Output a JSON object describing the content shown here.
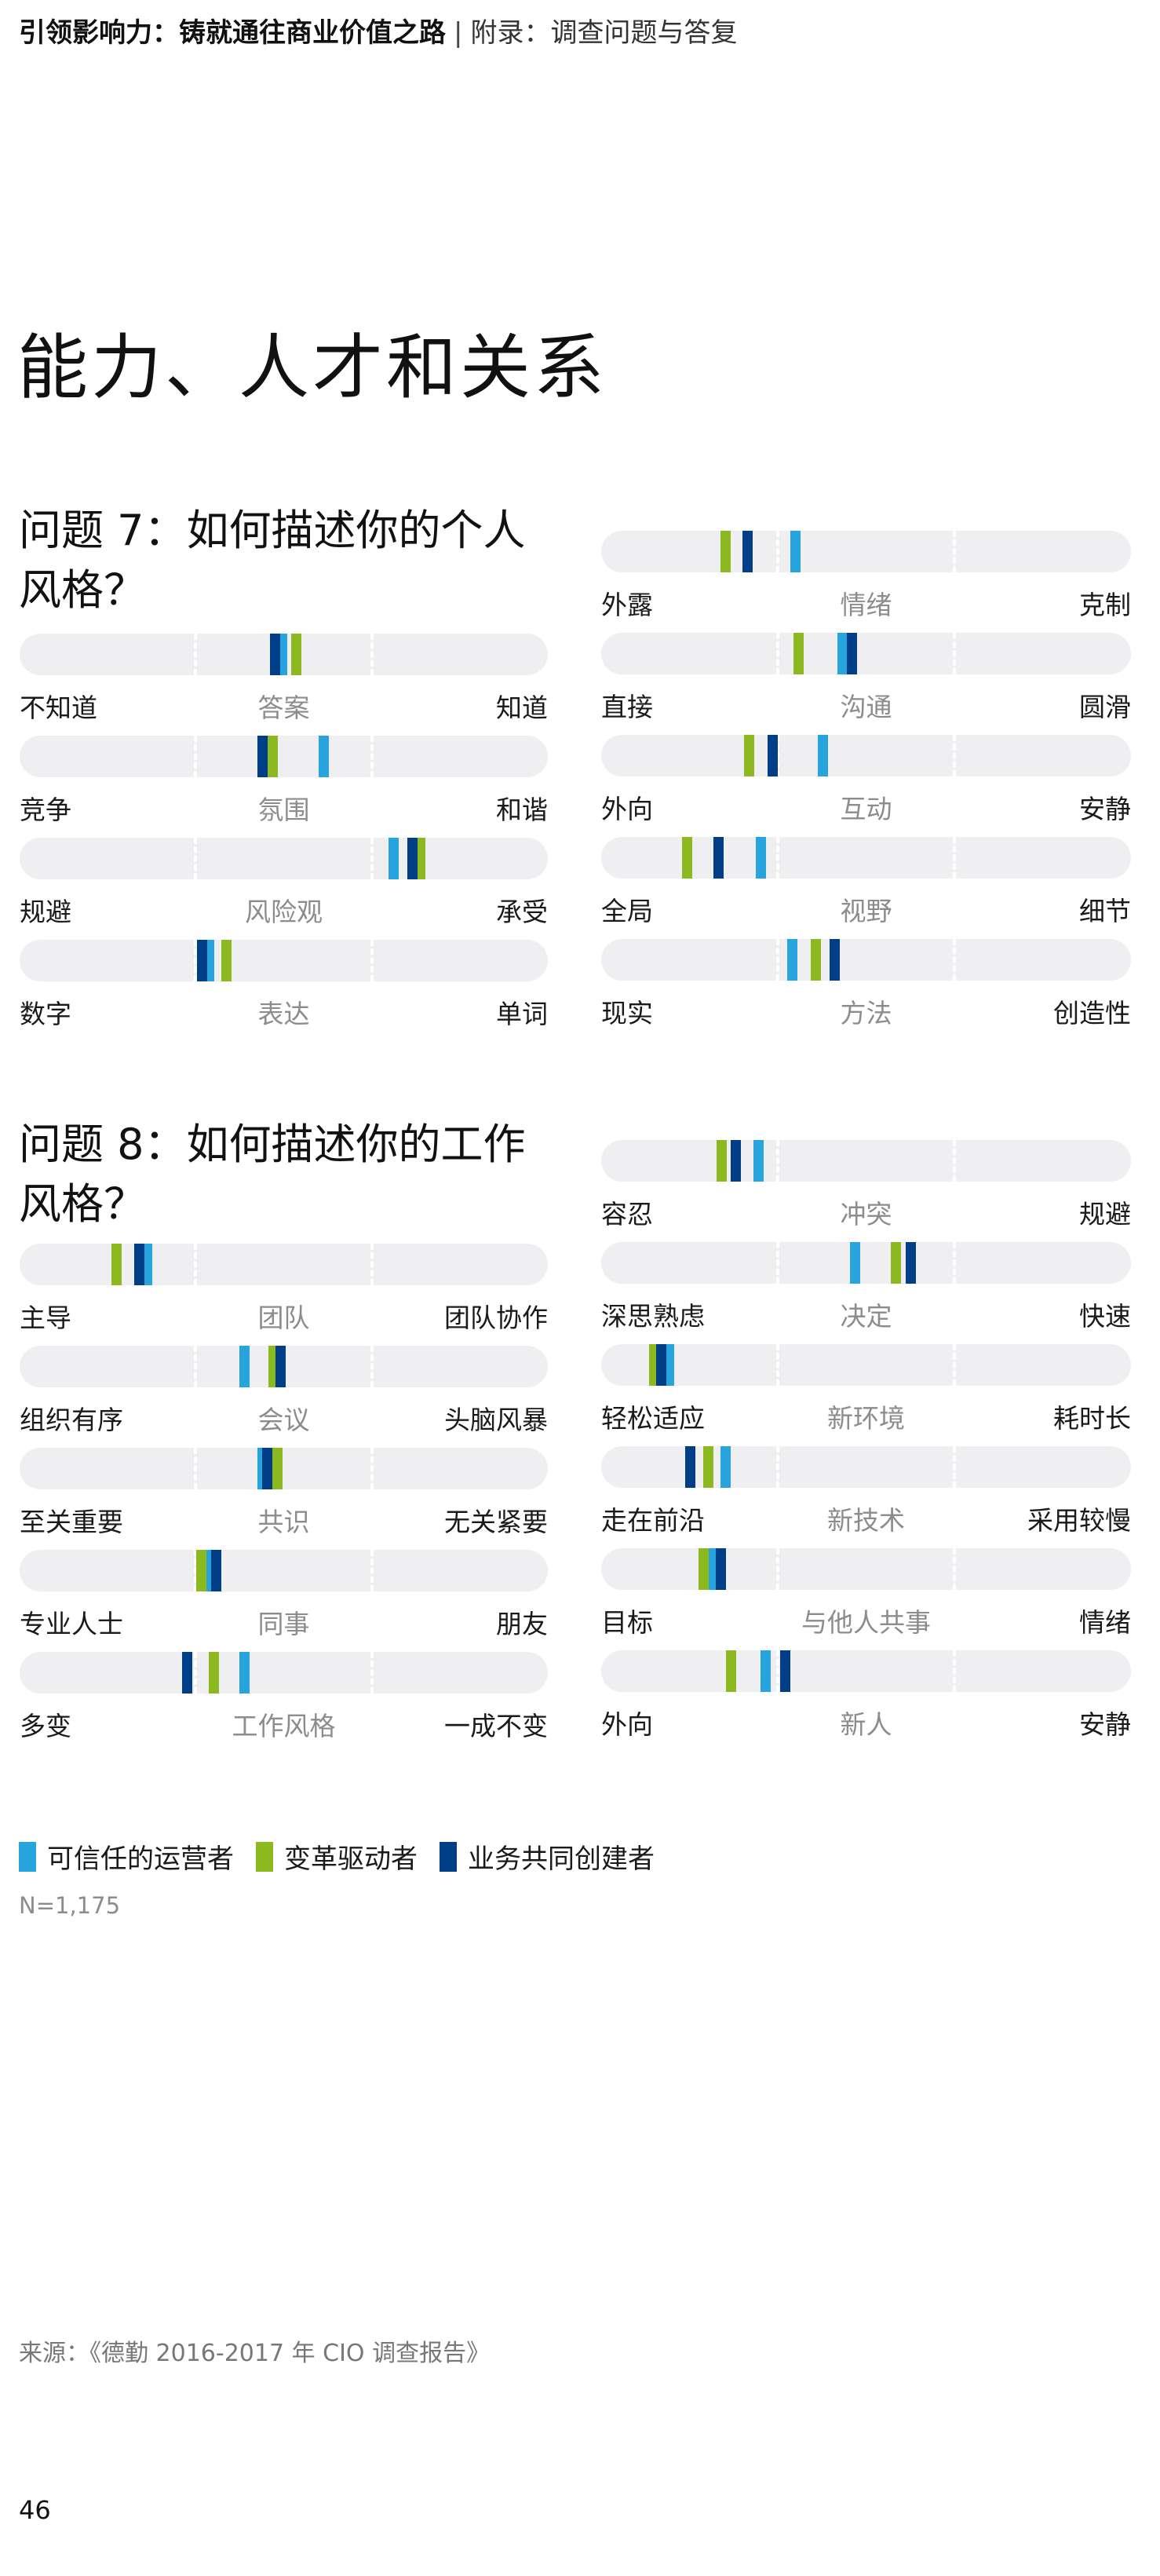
{
  "header": {
    "title": "引领影响力：铸就通往商业价值之路",
    "separator": "|",
    "subtitle": "附录：调查问题与答复"
  },
  "section_title": "能力、人才和关系",
  "legend": {
    "items": [
      {
        "label": "可信任的运营者",
        "color": "#27a3dd"
      },
      {
        "label": "变革驱动者",
        "color": "#8cb820"
      },
      {
        "label": "业务共同创建者",
        "color": "#003f87"
      }
    ]
  },
  "sample_size": "N=1,175",
  "source": "来源：《德勤 2016-2017 年 CIO 调查报告》",
  "page_number": "46",
  "chart_data": [
    {
      "type": "bar",
      "subtype": "semantic-differential-slider",
      "title": "问题 7：如何描述你的个人风格？",
      "scale": [
        0,
        100
      ],
      "grid": "dashed thirds",
      "series": [
        "可信任的运营者",
        "变革驱动者",
        "业务共同创建者"
      ],
      "colors": [
        "#27a3dd",
        "#8cb820",
        "#003f87"
      ],
      "items": [
        {
          "left": "不知道",
          "center": "答案",
          "right": "知道",
          "values": [
            49.6,
            52.3,
            48.3
          ]
        },
        {
          "left": "竞争",
          "center": "氛围",
          "right": "和谐",
          "values": [
            57.5,
            47.8,
            45.9
          ]
        },
        {
          "left": "规避",
          "center": "风险观",
          "right": "承受",
          "values": [
            70.7,
            75.8,
            74.3
          ]
        },
        {
          "left": "数字",
          "center": "表达",
          "right": "单词",
          "values": [
            35.8,
            39.1,
            34.5
          ]
        },
        {
          "left": "外露",
          "center": "情绪",
          "right": "克制",
          "values": [
            36.6,
            23.4,
            27.5
          ]
        },
        {
          "left": "直接",
          "center": "沟通",
          "right": "圆滑",
          "values": [
            45.5,
            37.2,
            47.3
          ]
        },
        {
          "left": "外向",
          "center": "互动",
          "right": "安静",
          "values": [
            41.8,
            27.8,
            32.3
          ]
        },
        {
          "left": "全局",
          "center": "视野",
          "right": "细节",
          "values": [
            30.0,
            16.1,
            22.1
          ]
        },
        {
          "left": "现实",
          "center": "方法",
          "right": "创造性",
          "values": [
            36.0,
            40.5,
            44.0
          ]
        }
      ]
    },
    {
      "type": "bar",
      "subtype": "semantic-differential-slider",
      "title": "问题 8：如何描述你的工作风格？",
      "scale": [
        0,
        100
      ],
      "grid": "dashed thirds",
      "series": [
        "可信任的运营者",
        "变革驱动者",
        "业务共同创建者"
      ],
      "colors": [
        "#27a3dd",
        "#8cb820",
        "#003f87"
      ],
      "items": [
        {
          "left": "主导",
          "center": "团队",
          "right": "团队协作",
          "values": [
            24.1,
            18.3,
            22.6
          ]
        },
        {
          "left": "组织有序",
          "center": "会议",
          "right": "头脑风暴",
          "values": [
            42.5,
            48.0,
            49.4
          ]
        },
        {
          "left": "至关重要",
          "center": "共识",
          "right": "无关紧要",
          "values": [
            45.9,
            48.7,
            46.8
          ]
        },
        {
          "left": "专业人士",
          "center": "同事",
          "right": "朋友",
          "values": [
            35.3,
            34.3,
            37.1
          ]
        },
        {
          "left": "多变",
          "center": "工作风格",
          "right": "一成不变",
          "values": [
            42.5,
            36.7,
            31.6
          ]
        },
        {
          "left": "容忍",
          "center": "冲突",
          "right": "规避",
          "values": [
            29.6,
            22.7,
            25.4
          ]
        },
        {
          "left": "深思熟虑",
          "center": "决定",
          "right": "快速",
          "values": [
            47.8,
            55.5,
            58.4
          ]
        },
        {
          "left": "轻松适应",
          "center": "新环境",
          "right": "耗时长",
          "values": [
            12.7,
            9.9,
            11.2
          ]
        },
        {
          "left": "走在前沿",
          "center": "新技术",
          "right": "采用较慢",
          "values": [
            23.4,
            20.1,
            16.7
          ]
        },
        {
          "left": "目标",
          "center": "与他人共事",
          "right": "情绪",
          "values": [
            20.8,
            19.2,
            22.5
          ]
        },
        {
          "left": "外向",
          "center": "新人",
          "right": "安静",
          "values": [
            31.0,
            24.4,
            34.6
          ]
        }
      ]
    }
  ]
}
